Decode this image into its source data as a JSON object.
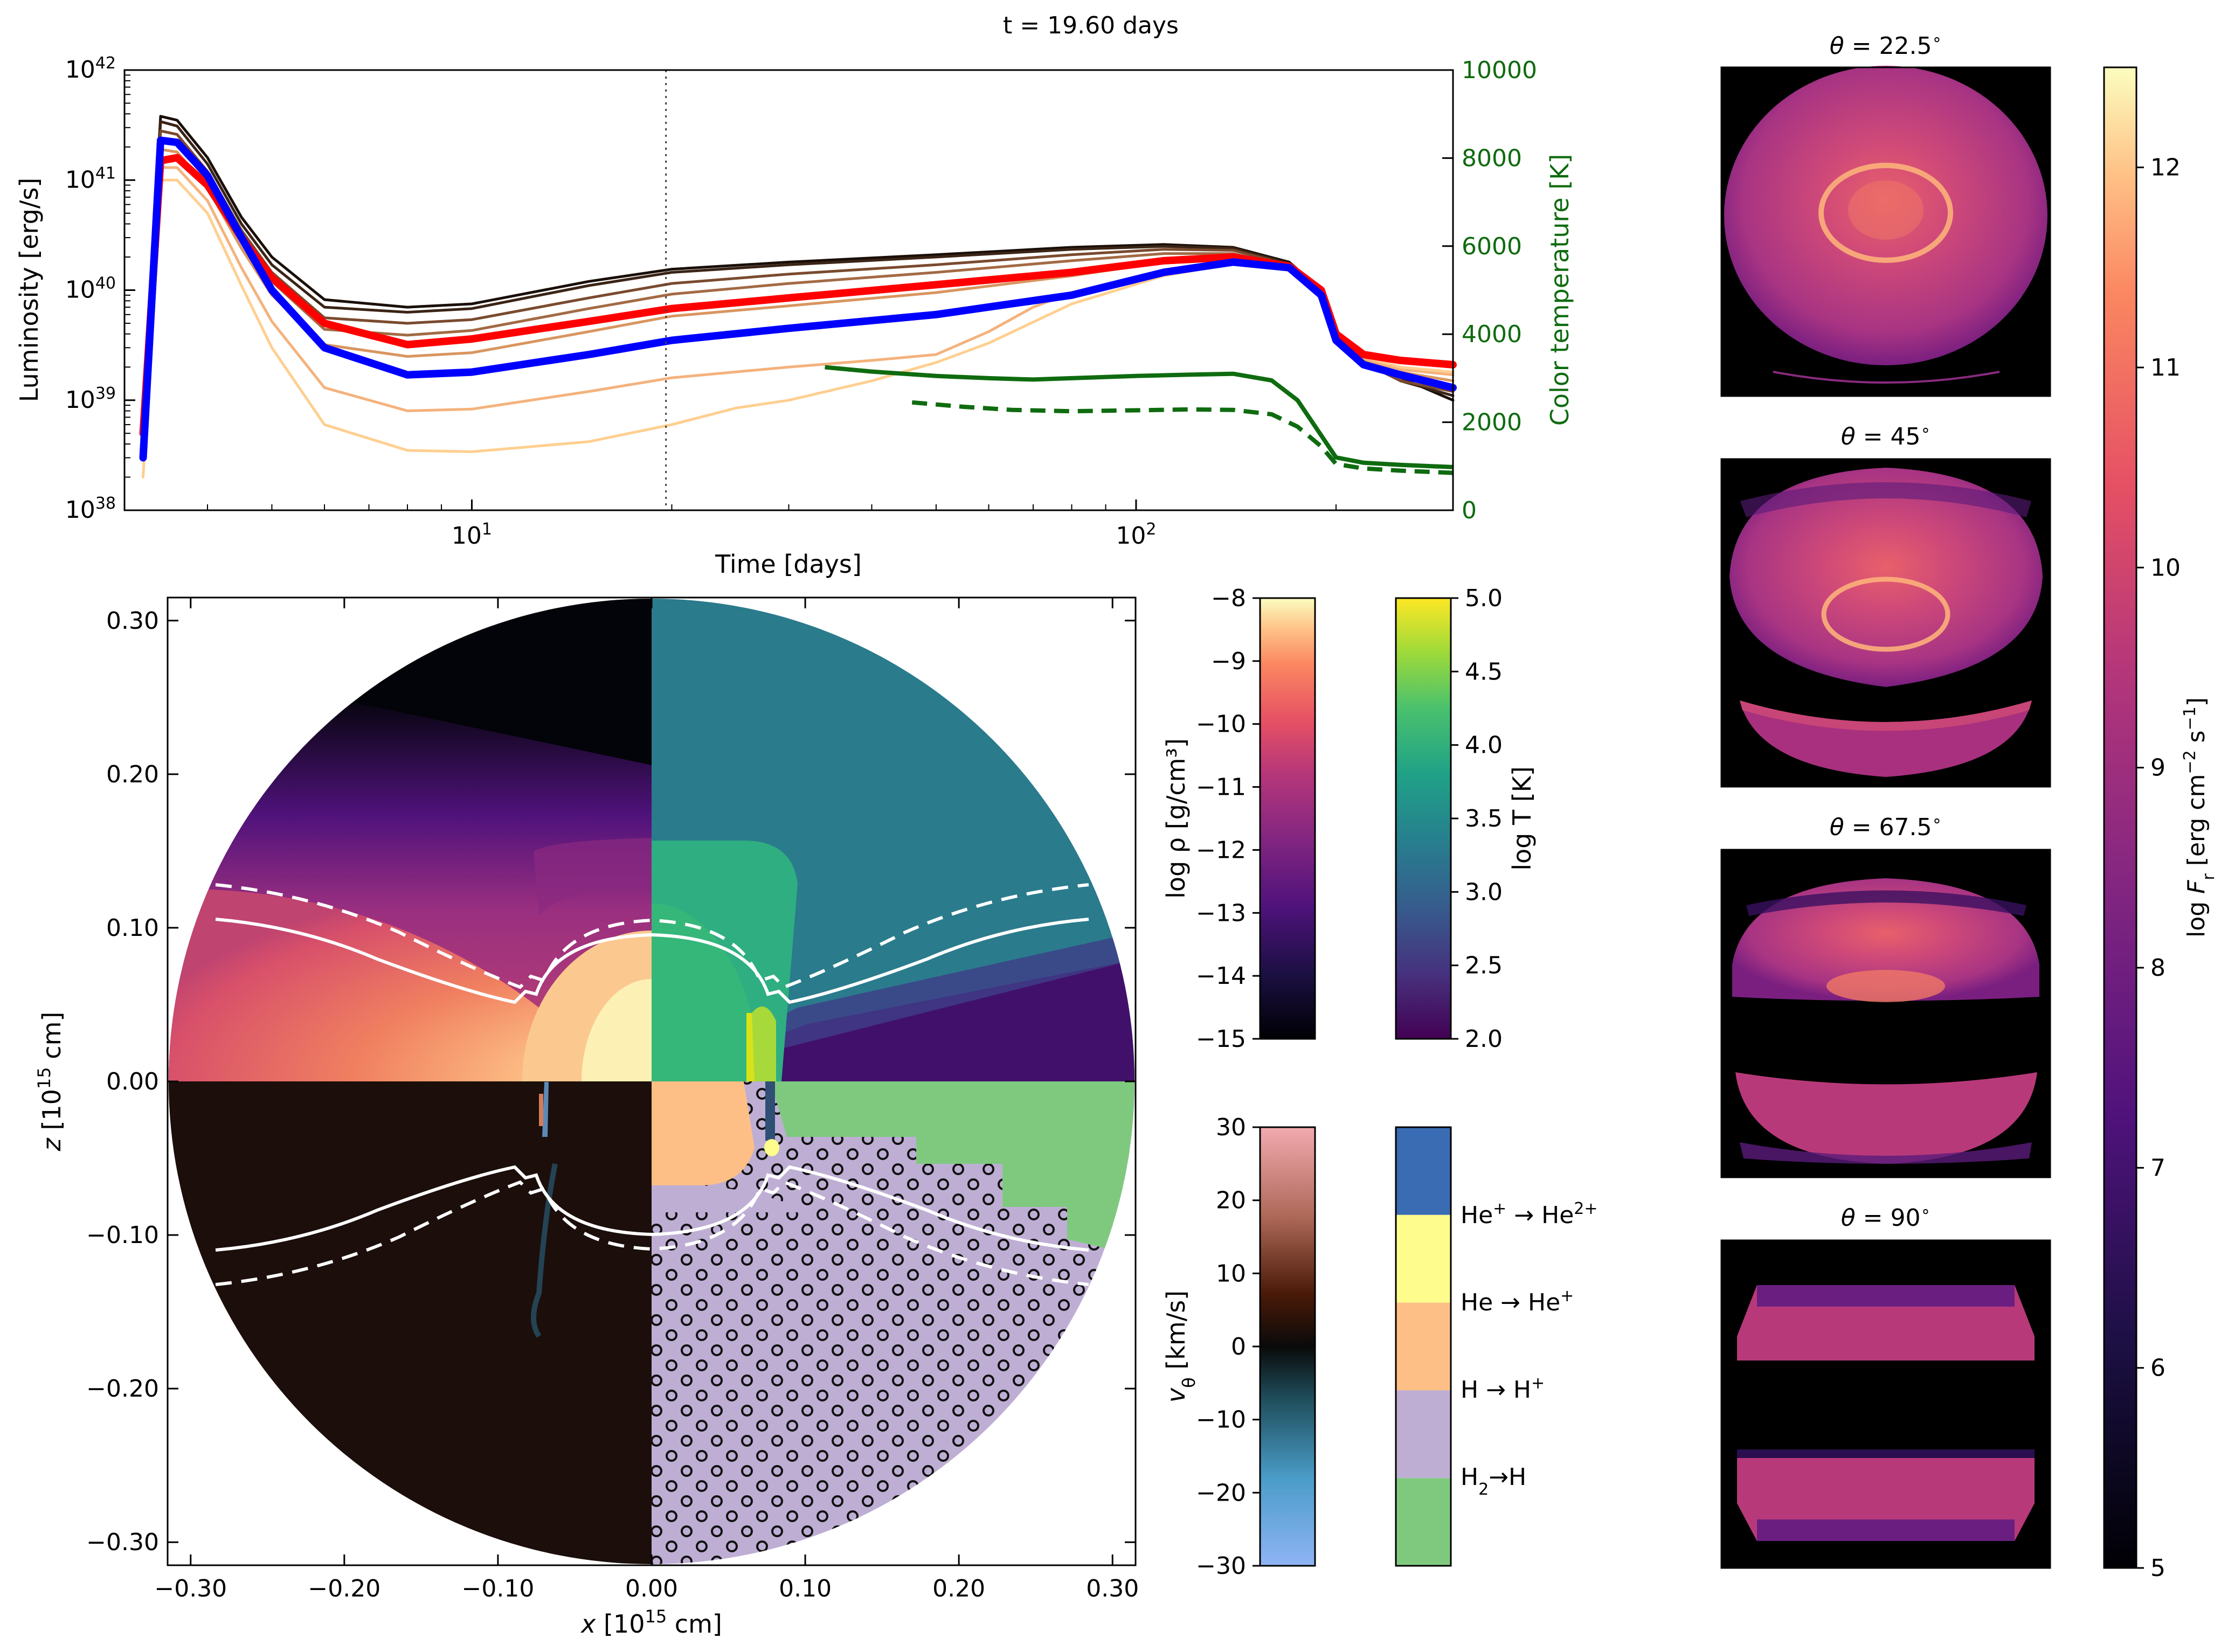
{
  "figure": {
    "time_label": "t = 19.60 days"
  },
  "chart_data": [
    {
      "id": "lightcurve",
      "type": "line",
      "xscale": "log",
      "xlim": [
        3,
        300
      ],
      "ylim": [
        1e+38,
        1e+42
      ],
      "y2lim": [
        0,
        10000
      ],
      "xlabel": "Time [days]",
      "ylabel": "Luminosity [erg/s]",
      "y2label": "Color temperature [K]",
      "xticks": [
        {
          "v": 10,
          "base": "10",
          "exp": "1"
        },
        {
          "v": 100,
          "base": "10",
          "exp": "2"
        }
      ],
      "yticks": [
        {
          "v": 1e+38,
          "base": "10",
          "exp": "38"
        },
        {
          "v": 1e+39,
          "base": "10",
          "exp": "39"
        },
        {
          "v": 1e+40,
          "base": "10",
          "exp": "40"
        },
        {
          "v": 1e+41,
          "base": "10",
          "exp": "41"
        },
        {
          "v": 1e+42,
          "base": "10",
          "exp": "42"
        }
      ],
      "y2ticks": [
        "0",
        "2000",
        "4000",
        "6000",
        "8000",
        "10000"
      ],
      "vline_x": 19.6,
      "series": [
        {
          "name": "red (equatorial)",
          "color": "#ff0000",
          "width": 14,
          "x": [
            3.2,
            3.4,
            3.6,
            4,
            4.5,
            5,
            6,
            8,
            10,
            15,
            20,
            30,
            50,
            80,
            110,
            140,
            170,
            190,
            200,
            220,
            250,
            300
          ],
          "y": [
            5e+38,
            1.5e+41,
            1.6e+41,
            9e+40,
            3e+40,
            1.3e+40,
            5e+39,
            3.2e+39,
            3.6e+39,
            5.2e+39,
            6.8e+39,
            8.5e+39,
            1.12e+40,
            1.45e+40,
            1.85e+40,
            2e+40,
            1.65e+40,
            1e+40,
            4e+39,
            2.6e+39,
            2.3e+39,
            2.1e+39
          ]
        },
        {
          "name": "blue (polar)",
          "color": "#0000ff",
          "width": 14,
          "x": [
            3.2,
            3.4,
            3.6,
            4,
            4.5,
            5,
            6,
            8,
            10,
            15,
            20,
            30,
            50,
            80,
            110,
            140,
            170,
            190,
            200,
            220,
            250,
            300
          ],
          "y": [
            3e+38,
            2.3e+41,
            2.2e+41,
            1.1e+41,
            3e+40,
            1e+40,
            3e+39,
            1.7e+39,
            1.8e+39,
            2.6e+39,
            3.5e+39,
            4.5e+39,
            6e+39,
            9e+39,
            1.45e+40,
            1.8e+40,
            1.6e+40,
            9e+39,
            3.5e+39,
            2.1e+39,
            1.7e+39,
            1.3e+39
          ]
        },
        {
          "name": "dark 1",
          "color": "#1a0f08",
          "width": 5,
          "x": [
            3.2,
            3.4,
            3.6,
            4,
            4.5,
            5,
            6,
            8,
            10,
            15,
            20,
            30,
            50,
            80,
            110,
            140,
            170,
            190,
            200,
            220,
            250,
            300
          ],
          "y": [
            8e+38,
            3.8e+41,
            3.5e+41,
            1.6e+41,
            4.6e+40,
            2e+40,
            8.2e+39,
            7e+39,
            7.5e+39,
            1.2e+40,
            1.55e+40,
            1.8e+40,
            2.1e+40,
            2.45e+40,
            2.6e+40,
            2.45e+40,
            1.8e+40,
            1e+40,
            4.2e+39,
            2.4e+39,
            1.6e+39,
            1e+39
          ]
        },
        {
          "name": "dark 2",
          "color": "#3b2416",
          "width": 5,
          "x": [
            3.2,
            3.4,
            3.6,
            4,
            4.5,
            5,
            6,
            8,
            10,
            15,
            20,
            30,
            50,
            80,
            110,
            140,
            170,
            190,
            200,
            220,
            250,
            300
          ],
          "y": [
            7e+38,
            3.4e+41,
            3.1e+41,
            1.4e+41,
            4e+40,
            1.7e+40,
            7e+39,
            6.3e+39,
            6.8e+39,
            1.1e+40,
            1.45e+40,
            1.7e+40,
            2e+40,
            2.35e+40,
            2.5e+40,
            2.4e+40,
            1.75e+40,
            9.8e+39,
            4e+39,
            2.3e+39,
            1.5e+39,
            1.1e+39
          ]
        },
        {
          "name": "brown 1",
          "color": "#7a4a2e",
          "width": 5,
          "x": [
            3.2,
            3.4,
            3.6,
            4,
            4.5,
            5,
            6,
            8,
            10,
            15,
            20,
            30,
            50,
            80,
            110,
            140,
            170,
            190,
            200,
            220,
            250,
            300
          ],
          "y": [
            6e+38,
            2.8e+41,
            2.6e+41,
            1.2e+41,
            3.5e+40,
            1.45e+40,
            5.6e+39,
            5e+39,
            5.4e+39,
            8.5e+39,
            1.15e+40,
            1.4e+40,
            1.7e+40,
            2.1e+40,
            2.35e+40,
            2.3e+40,
            1.7e+40,
            9.5e+39,
            3.9e+39,
            2.2e+39,
            1.5e+39,
            1.2e+39
          ]
        },
        {
          "name": "brown 2",
          "color": "#a36a45",
          "width": 5,
          "x": [
            3.2,
            3.4,
            3.6,
            4,
            4.5,
            5,
            6,
            8,
            10,
            15,
            20,
            30,
            50,
            80,
            110,
            140,
            170,
            190,
            200,
            220,
            250,
            300
          ],
          "y": [
            5e+38,
            2.3e+41,
            2.1e+41,
            1e+41,
            2.9e+40,
            1.2e+40,
            4.4e+39,
            3.9e+39,
            4.3e+39,
            6.8e+39,
            9.2e+39,
            1.15e+40,
            1.45e+40,
            1.85e+40,
            2.15e+40,
            2.15e+40,
            1.65e+40,
            9.2e+39,
            3.8e+39,
            2.2e+39,
            1.6e+39,
            1.3e+39
          ]
        },
        {
          "name": "tan 1",
          "color": "#d9955f",
          "width": 5,
          "x": [
            3.2,
            3.4,
            3.6,
            4,
            4.5,
            5,
            6,
            8,
            10,
            15,
            20,
            30,
            50,
            80,
            110,
            140,
            170,
            190,
            200,
            220,
            250,
            300
          ],
          "y": [
            4e+38,
            1.9e+41,
            1.8e+41,
            8.5e+40,
            2.4e+40,
            9e+39,
            3.2e+39,
            2.5e+39,
            2.7e+39,
            4.2e+39,
            5.8e+39,
            7.2e+39,
            9.5e+39,
            1.35e+40,
            1.8e+40,
            2e+40,
            1.6e+40,
            9e+39,
            3.7e+39,
            2.3e+39,
            1.8e+39,
            1.5e+39
          ]
        },
        {
          "name": "light 1",
          "color": "#f4b27c",
          "width": 5,
          "x": [
            3.2,
            3.4,
            3.6,
            4,
            4.5,
            5,
            6,
            8,
            10,
            15,
            20,
            30,
            40,
            50,
            60,
            70,
            80,
            110,
            140,
            170,
            190,
            200,
            220,
            250,
            300
          ],
          "y": [
            3e+38,
            1.3e+41,
            1.3e+41,
            6.5e+40,
            1.6e+40,
            5.2e+39,
            1.3e+39,
            8e+38,
            8.3e+38,
            1.2e+39,
            1.6e+39,
            2e+39,
            2.3e+39,
            2.6e+39,
            4.2e+39,
            7e+39,
            9.5e+39,
            1.5e+40,
            1.8e+40,
            1.6e+40,
            9.2e+39,
            3.8e+39,
            2.4e+39,
            1.9e+39,
            1.7e+39
          ]
        },
        {
          "name": "light 2",
          "color": "#ffcf90",
          "width": 5,
          "x": [
            3.2,
            3.4,
            3.6,
            4,
            4.5,
            5,
            6,
            8,
            10,
            15,
            20,
            25,
            30,
            40,
            50,
            60,
            80,
            110,
            140,
            170,
            190,
            200,
            220,
            250,
            300
          ],
          "y": [
            2e+38,
            1e+41,
            1e+41,
            5e+40,
            1.1e+40,
            3e+39,
            6e+38,
            3.5e+38,
            3.4e+38,
            4.2e+38,
            6e+38,
            8.5e+38,
            1e+39,
            1.5e+39,
            2.2e+39,
            3.3e+39,
            7.5e+39,
            1.35e+40,
            1.75e+40,
            1.6e+40,
            9.3e+39,
            3.9e+39,
            2.5e+39,
            2e+39,
            1.8e+39
          ]
        }
      ],
      "temperature_series": [
        {
          "name": "color temperature (solid)",
          "color": "#0f6b0f",
          "dash": false,
          "x": [
            34,
            40,
            50,
            60,
            70,
            80,
            100,
            120,
            140,
            160,
            175,
            190,
            200,
            220,
            250,
            300
          ],
          "y": [
            3250,
            3150,
            3050,
            3000,
            2970,
            3000,
            3050,
            3080,
            3100,
            2950,
            2500,
            1700,
            1200,
            1080,
            1030,
            980
          ]
        },
        {
          "name": "color temperature (dashed)",
          "color": "#0f6b0f",
          "dash": true,
          "x": [
            46,
            55,
            65,
            80,
            100,
            120,
            140,
            160,
            175,
            190,
            200,
            220,
            250,
            300
          ],
          "y": [
            2450,
            2350,
            2280,
            2250,
            2270,
            2290,
            2280,
            2180,
            1900,
            1450,
            1050,
            950,
            900,
            850
          ]
        }
      ]
    },
    {
      "id": "meridional-map",
      "type": "heatmap",
      "xlabel": "x [10^15 cm]",
      "ylabel": "z [10^15 cm]",
      "xlim": [
        -0.315,
        0.315
      ],
      "ylim": [
        -0.315,
        0.315
      ],
      "xticks": [
        "−0.30",
        "−0.20",
        "−0.10",
        "0.00",
        "0.10",
        "0.20",
        "0.30"
      ],
      "yticks": [
        "0.30",
        "0.20",
        "0.10",
        "0.00",
        "−0.10",
        "−0.20",
        "−0.30"
      ],
      "quadrants": [
        "log ρ",
        "log T",
        "v_θ",
        "ionization state"
      ]
    },
    {
      "id": "colorbars",
      "type": "heatmap",
      "rho": {
        "label": "log ρ [g/cm³]",
        "range": [
          -15,
          -8
        ],
        "ticks": [
          "−8",
          "−9",
          "−10",
          "−11",
          "−12",
          "−13",
          "−14",
          "−15"
        ]
      },
      "temperature": {
        "label": "log T [K]",
        "range": [
          2.0,
          5.0
        ],
        "ticks": [
          "5.0",
          "4.5",
          "4.0",
          "3.5",
          "3.0",
          "2.5",
          "2.0"
        ]
      },
      "velocity": {
        "label": "v_θ [km/s]",
        "range": [
          -30,
          30
        ],
        "ticks": [
          "30",
          "20",
          "10",
          "0",
          "−10",
          "−20",
          "−30"
        ]
      },
      "ionization": {
        "categories": [
          {
            "name": "He+ → He2+",
            "color": "#3a6cb4"
          },
          {
            "name": "He → He+",
            "color": "#fdfc8c"
          },
          {
            "name": "H → H+",
            "color": "#fdbf86"
          },
          {
            "name": "H2 → H",
            "color": "#beaed4"
          },
          {
            "name": "",
            "color": "#7fc97f"
          }
        ]
      },
      "flux": {
        "label": "log F_r [erg cm^-2 s^-1]",
        "range": [
          5,
          12.5
        ],
        "ticks": [
          "12",
          "11",
          "10",
          "9",
          "8",
          "7",
          "6",
          "5"
        ]
      }
    },
    {
      "id": "viewing-angle-images",
      "type": "heatmap",
      "panels": [
        {
          "theta": "22.5",
          "title": "θ = 22.5°"
        },
        {
          "theta": "45",
          "title": "θ = 45°"
        },
        {
          "theta": "67.5",
          "title": "θ = 67.5°"
        },
        {
          "theta": "90",
          "title": "θ = 90°"
        }
      ]
    }
  ]
}
